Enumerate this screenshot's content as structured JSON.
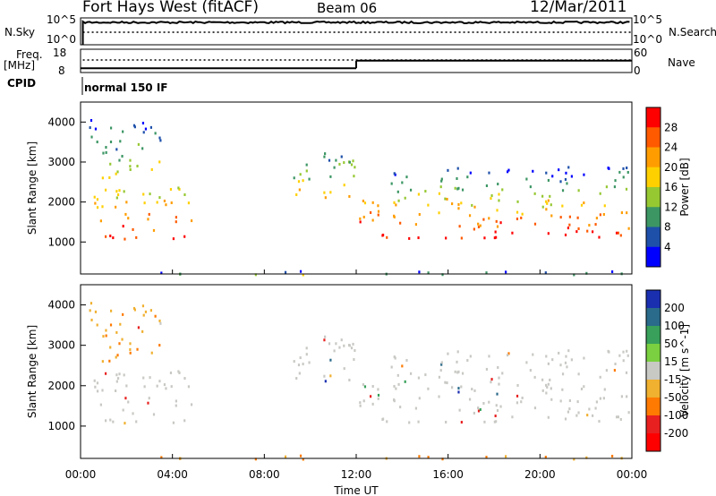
{
  "chart_data": {
    "type": "heatmap",
    "station": "Fort Hays West (fitACF)",
    "beam": "Beam 06",
    "date": "12/Mar/2011",
    "xlabel": "Time UT",
    "x_ticks": [
      "00:00",
      "04:00",
      "08:00",
      "12:00",
      "16:00",
      "20:00",
      "00:00"
    ],
    "noise_panel": {
      "left_label": "N.Sky",
      "right_label": "N.Search",
      "left_ticks": [
        "10^5",
        "10^0"
      ],
      "right_ticks": [
        "10^5",
        "10^0"
      ]
    },
    "freq_panel": {
      "left_label_1": "Freq.",
      "left_label_2": "[MHz]",
      "right_label": "Nave",
      "left_ticks": [
        "18",
        "8"
      ],
      "right_ticks": [
        "60",
        "0"
      ],
      "freq_segments": [
        {
          "t_start": 0.0,
          "t_end": 12.0,
          "value_mhz": 10.0
        },
        {
          "t_start": 12.0,
          "t_end": 24.0,
          "value_mhz": 13.5
        }
      ],
      "nave_level": 48
    },
    "cpid_label": "CPID",
    "cpid_value": "normal 150 IF",
    "power_panel": {
      "ylabel": "Slant Range [km]",
      "y_ticks": [
        "4000",
        "3000",
        "2000",
        "1000"
      ],
      "ylim": [
        200,
        4500
      ],
      "colorbar_label": "Power [dB]",
      "colorbar_ticks": [
        "28",
        "24",
        "20",
        "16",
        "12",
        "8",
        "4"
      ],
      "colorbar_colors": [
        "#ff0000",
        "#ff5a00",
        "#ff9d00",
        "#ffd000",
        "#96c832",
        "#3c9664",
        "#1e50aa",
        "#0000ff"
      ]
    },
    "velocity_panel": {
      "ylabel": "Slant Range [km]",
      "y_ticks": [
        "4000",
        "3000",
        "2000",
        "1000"
      ],
      "ylim": [
        200,
        4500
      ],
      "colorbar_label": "Velocity [m s^-1]",
      "colorbar_ticks": [
        "200",
        "100",
        "50",
        "15",
        "-15",
        "-50",
        "-100",
        "-200"
      ],
      "colorbar_colors": [
        "#1a2fb0",
        "#2a6a8a",
        "#38a05a",
        "#7ad040",
        "#c8c8c4",
        "#f0b030",
        "#ff7a00",
        "#e82020",
        "#ff0000"
      ]
    },
    "echo_regions": [
      {
        "t_start": 0.5,
        "t_end": 4.9,
        "r_lo": 1100,
        "r_hi": 2400,
        "power_db": 20,
        "velocity": 0
      },
      {
        "t_start": 0.3,
        "t_end": 3.5,
        "r_lo": 2600,
        "r_hi": 4100,
        "power_db": 8,
        "velocity": -40
      },
      {
        "t_start": 9.0,
        "t_end": 11.9,
        "r_lo": 2100,
        "r_hi": 3400,
        "power_db": 12,
        "velocity": 0
      },
      {
        "t_start": 12.1,
        "t_end": 24.0,
        "r_lo": 1100,
        "r_hi": 2100,
        "power_db": 22,
        "velocity": 0
      },
      {
        "t_start": 13.5,
        "t_end": 24.0,
        "r_lo": 2100,
        "r_hi": 2900,
        "power_db": 8,
        "velocity": 0
      },
      {
        "t_start": 0.0,
        "t_end": 24.0,
        "r_lo": 200,
        "r_hi": 300,
        "power_db": 6,
        "velocity": -60
      }
    ]
  }
}
